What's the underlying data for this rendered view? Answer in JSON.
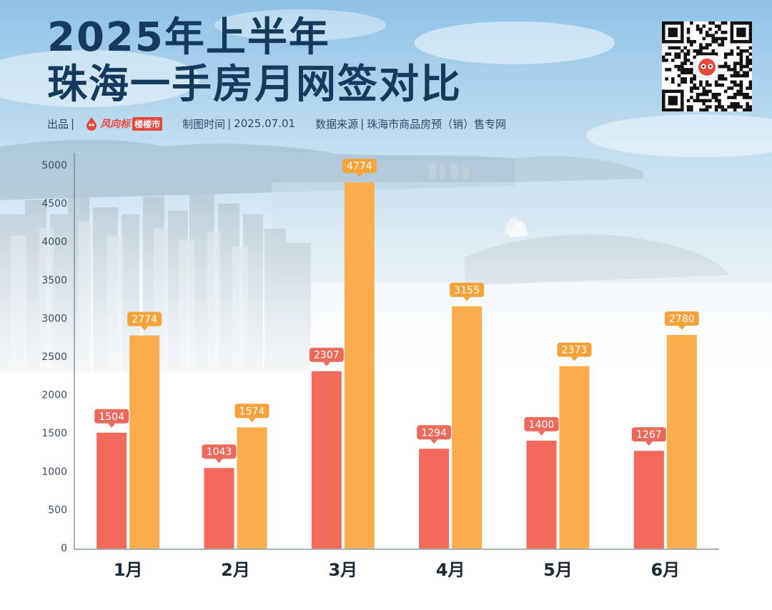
{
  "header": {
    "title_line1": "2025年上半年",
    "title_line2": "珠海一手房月网签对比",
    "producer_label": "出品",
    "logo_brand": "风向标",
    "logo_tag": "楼楼市",
    "date_label": "制图时间",
    "date_value": "2025.07.01",
    "source_label": "数据来源",
    "source_value": "珠海市商品房预（销）售专网",
    "separator": "|"
  },
  "colors": {
    "title": "#163a5c",
    "series_red": "#f26a5a",
    "series_orange": "#fbad4e",
    "label_red": "#ea6a5c",
    "label_orange": "#f5a23a"
  },
  "chart_data": {
    "type": "bar",
    "categories": [
      "1月",
      "2月",
      "3月",
      "4月",
      "5月",
      "6月"
    ],
    "series": [
      {
        "values": [
          1504,
          1043,
          2307,
          1294,
          1400,
          1267
        ]
      },
      {
        "values": [
          2774,
          1574,
          4774,
          3155,
          2373,
          2780
        ]
      }
    ],
    "yticks": [
      0,
      500,
      1000,
      1500,
      2000,
      2500,
      3000,
      3500,
      4000,
      4500,
      5000
    ],
    "ylim": [
      0,
      5000
    ],
    "title": "",
    "xlabel": "",
    "ylabel": "",
    "grid": false,
    "legend": "none"
  }
}
